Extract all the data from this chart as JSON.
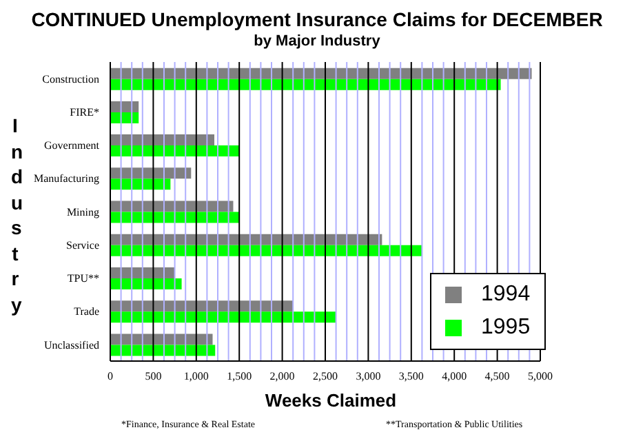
{
  "chart_data": {
    "type": "bar",
    "orientation": "horizontal",
    "title": "CONTINUED Unemployment Insurance Claims for DECEMBER",
    "subtitle": "by Major Industry",
    "xlabel": "Weeks Claimed",
    "ylabel": "Industry",
    "categories": [
      "Construction",
      "FIRE*",
      "Government",
      "Manufacturing",
      "Mining",
      "Service",
      "TPU**",
      "Trade",
      "Unclassified"
    ],
    "series": [
      {
        "name": "1994",
        "color": "#808080",
        "values": [
          4900,
          330,
          1210,
          940,
          1430,
          3160,
          750,
          2130,
          1190
        ]
      },
      {
        "name": "1995",
        "color": "#00ff00",
        "values": [
          4540,
          330,
          1500,
          700,
          1500,
          3630,
          830,
          2620,
          1220
        ]
      }
    ],
    "xlim": [
      0,
      5000
    ],
    "xticks": [
      0,
      {
        "value": 125,
        "label": null
      },
      {
        "value": 250,
        "label": null
      },
      {
        "value": 375,
        "label": null
      },
      {
        "value": 500,
        "label": "500"
      },
      {
        "value": 625,
        "label": null
      },
      {
        "value": 750,
        "label": null
      },
      {
        "value": 875,
        "label": null
      },
      {
        "value": 1000,
        "label": "1,000"
      },
      {
        "value": 1125,
        "label": null
      },
      {
        "value": 1250,
        "label": null
      },
      {
        "value": 1375,
        "label": null
      },
      {
        "value": 1500,
        "label": "1,500"
      },
      {
        "value": 1625,
        "label": null
      },
      {
        "value": 1750,
        "label": null
      },
      {
        "value": 1875,
        "label": null
      },
      {
        "value": 2000,
        "label": "2,000"
      },
      {
        "value": 2125,
        "label": null
      },
      {
        "value": 2250,
        "label": null
      },
      {
        "value": 2375,
        "label": null
      },
      {
        "value": 2500,
        "label": "2,500"
      },
      {
        "value": 2625,
        "label": null
      },
      {
        "value": 2750,
        "label": null
      },
      {
        "value": 2875,
        "label": null
      },
      {
        "value": 3000,
        "label": "3,000"
      },
      {
        "value": 3125,
        "label": null
      },
      {
        "value": 3250,
        "label": null
      },
      {
        "value": 3375,
        "label": null
      },
      {
        "value": 3500,
        "label": "3,500"
      },
      {
        "value": 3625,
        "label": null
      },
      {
        "value": 3750,
        "label": null
      },
      {
        "value": 3875,
        "label": null
      },
      {
        "value": 4000,
        "label": "4,000"
      },
      {
        "value": 4125,
        "label": null
      },
      {
        "value": 4250,
        "label": null
      },
      {
        "value": 4375,
        "label": null
      },
      {
        "value": 4500,
        "label": "4,500"
      },
      {
        "value": 4625,
        "label": null
      },
      {
        "value": 4750,
        "label": null
      },
      {
        "value": 4875,
        "label": null
      },
      {
        "value": 5000,
        "label": "5,000"
      }
    ],
    "grid": "x",
    "legend": "bottom right",
    "annotations": [
      "*Finance, Insurance & Real Estate",
      "**Transportation & Public Utilities"
    ]
  }
}
